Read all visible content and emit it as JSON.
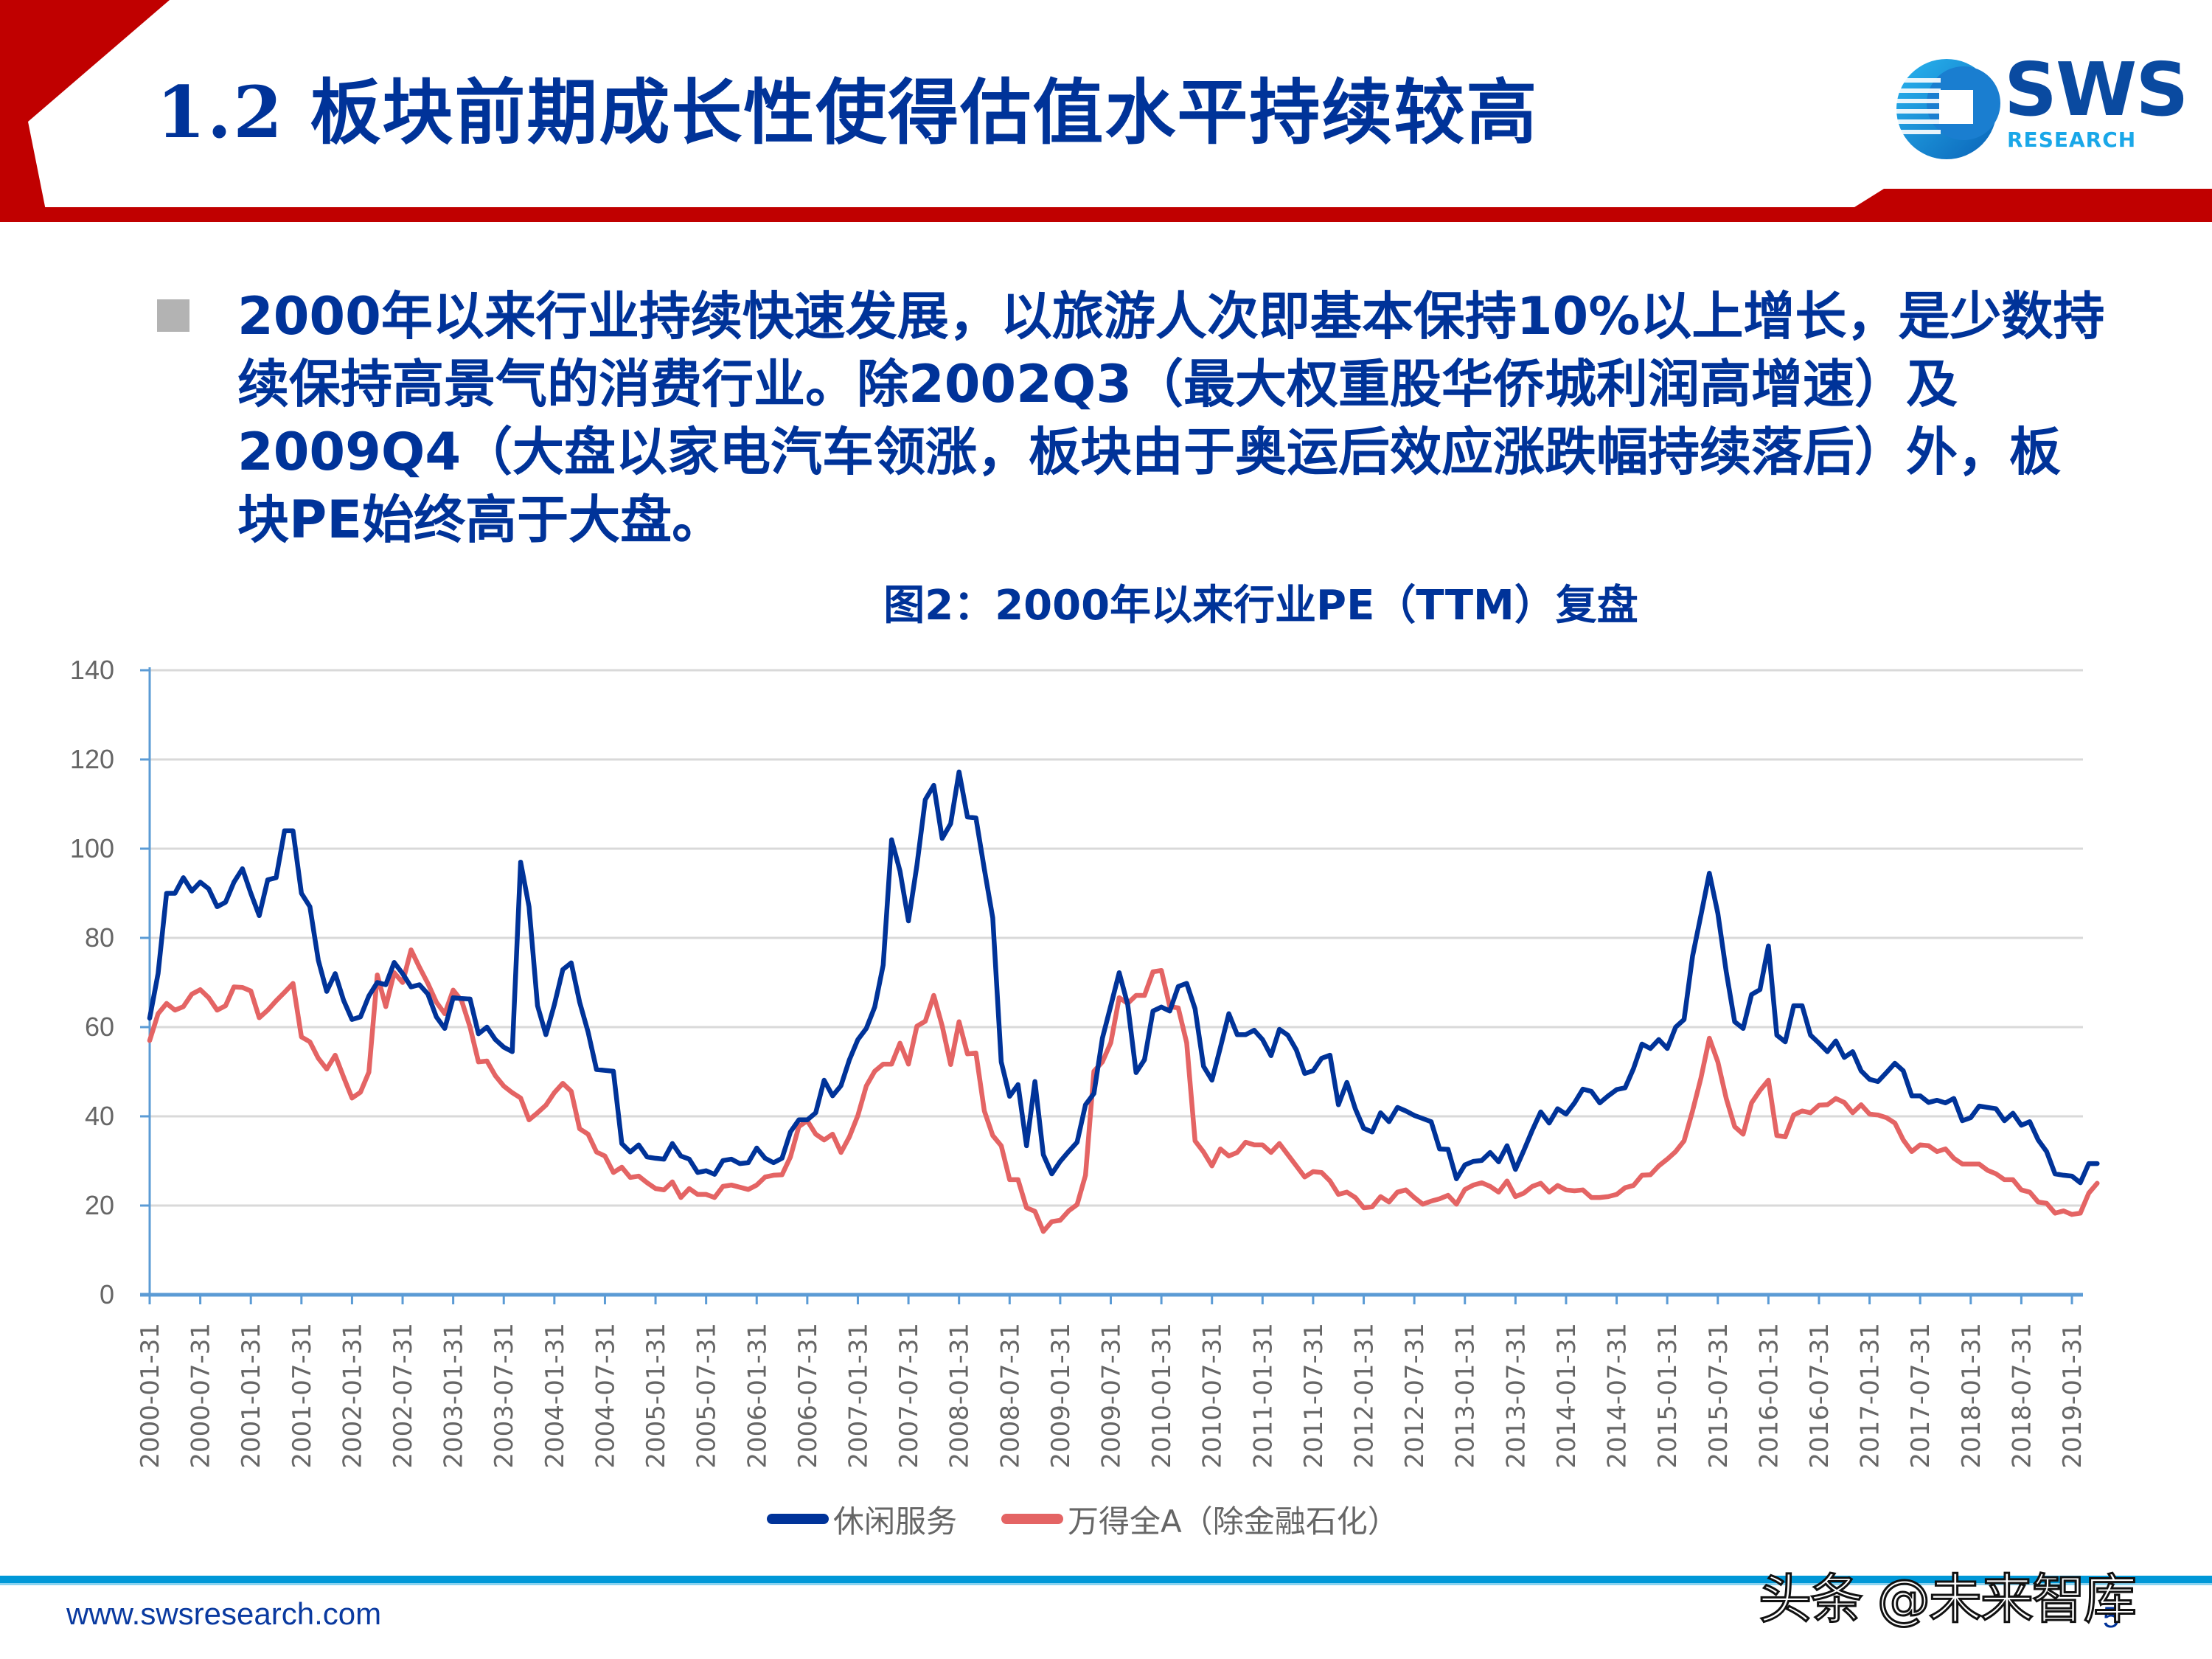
{
  "header": {
    "title": "1.2 板块前期成长性使得估值水平持续较高",
    "accent_color": "#c00000",
    "title_color": "#003399"
  },
  "logo": {
    "name": "SWS",
    "subtitle": "RESEARCH",
    "icon": "sws-globe-logo-icon"
  },
  "body": {
    "bullet_icon": "square-bullet-icon",
    "text": "2000年以来行业持续快速发展，以旅游人次即基本保持10%以上增长，是少数持续保持高景气的消费行业。除2002Q3（最大权重股华侨城利润高增速）及2009Q4（大盘以家电汽车领涨，板块由于奥运后效应涨跌幅持续落后）外，板块PE始终高于大盘。"
  },
  "chart": {
    "title": "图2：2000年以来行业PE（TTM）复盘"
  },
  "legend": {
    "items": [
      {
        "label": "休闲服务",
        "color": "#003399"
      },
      {
        "label": "万得全A（除金融石化）",
        "color": "#e46464"
      }
    ]
  },
  "footer": {
    "url": "www.swsresearch.com",
    "page_number": "5",
    "watermark": "头条 @未来智库",
    "line_color": "#0098d8"
  },
  "chart_data": {
    "type": "line",
    "title": "图2：2000年以来行业PE（TTM）复盘",
    "xlabel": "",
    "ylabel": "",
    "ylim": [
      0,
      140
    ],
    "yticks": [
      0,
      20,
      40,
      60,
      80,
      100,
      120,
      140
    ],
    "grid": true,
    "legend_position": "bottom",
    "x_start": "2000-01-31",
    "x_frequency": "monthly",
    "categories": [
      "2000-01-31",
      "2000-07-31",
      "2001-01-31",
      "2001-07-31",
      "2002-01-31",
      "2002-07-31",
      "2003-01-31",
      "2003-07-31",
      "2004-01-31",
      "2004-07-31",
      "2005-01-31",
      "2005-07-31",
      "2006-01-31",
      "2006-07-31",
      "2007-01-31",
      "2007-07-31",
      "2008-01-31",
      "2008-07-31",
      "2009-01-31",
      "2009-07-31",
      "2010-01-31",
      "2010-07-31",
      "2011-01-31",
      "2011-07-31",
      "2012-01-31",
      "2012-07-31",
      "2013-01-31",
      "2013-07-31",
      "2014-01-31",
      "2014-07-31",
      "2015-01-31",
      "2015-07-31",
      "2016-01-31",
      "2016-07-31",
      "2017-01-31",
      "2017-07-31",
      "2018-01-31",
      "2018-07-31",
      "2019-01-31"
    ],
    "series": [
      {
        "name": "休闲服务",
        "color": "#003399",
        "values": [
          62,
          72,
          90,
          90,
          93.5,
          90.5,
          92.5,
          91,
          87,
          88,
          92.5,
          95.5,
          90,
          85,
          93,
          93.5,
          104,
          104,
          90,
          87,
          75,
          68,
          72,
          66,
          61.7,
          62.3,
          67,
          70,
          69.5,
          74.5,
          72,
          69,
          69.5,
          67.4,
          62.3,
          59.7,
          66.6,
          66.4,
          66.3,
          58.5,
          60,
          57.2,
          55.5,
          54.5,
          97,
          87,
          64.8,
          58.3,
          65,
          72.9,
          74.4,
          65.6,
          58.9,
          50.5,
          50.3,
          50.1,
          33.9,
          32,
          33.6,
          30.9,
          30.6,
          30.4,
          33.9,
          31.1,
          30.4,
          27.4,
          27.8,
          27,
          30.1,
          30.4,
          29.4,
          29.6,
          32.9,
          30.6,
          29.6,
          30.6,
          36.5,
          39.2,
          39.2,
          40.8,
          48.1,
          44.6,
          46.9,
          52.7,
          57.2,
          59.7,
          64.5,
          73.9,
          102,
          95,
          83.8,
          96.2,
          111,
          114.2,
          102.3,
          105.6,
          117.2,
          107.1,
          106.9,
          95.4,
          84.5,
          52.2,
          44.5,
          47.1,
          33.4,
          47.8,
          31.4,
          27.1,
          29.9,
          32.1,
          34.2,
          42.6,
          45.1,
          57.5,
          64.8,
          72.2,
          65.1,
          49.8,
          52.7,
          63.6,
          64.5,
          63.6,
          69.1,
          69.8,
          64.1,
          51.2,
          48.1,
          55.4,
          63,
          58.3,
          58.3,
          59.3,
          57.2,
          53.6,
          59.5,
          58.2,
          54.9,
          49.6,
          50.2,
          53,
          53.7,
          42.6,
          47.6,
          41.7,
          37.3,
          36.5,
          40.8,
          38.8,
          42,
          41.2,
          40.2,
          39.5,
          38.8,
          32.7,
          32.6,
          26,
          29.1,
          29.9,
          30.1,
          31.9,
          29.8,
          33.4,
          28.1,
          32.4,
          36.9,
          41,
          38.5,
          41.7,
          40.5,
          43,
          46.1,
          45.6,
          43,
          44.6,
          46,
          46.4,
          50.7,
          56.2,
          55.2,
          57.2,
          55.2,
          60,
          61.7,
          75.9,
          85.1,
          94.5,
          85.5,
          72.4,
          61.2,
          59.7,
          67.3,
          68.4,
          78.2,
          58.2,
          56.7,
          64.8,
          64.8,
          58.2,
          56.4,
          54.5,
          56.9,
          53.2,
          54.5,
          50.2,
          48.3,
          47.8,
          49.8,
          51.9,
          50.2,
          44.6,
          44.6,
          43.1,
          43.6,
          43,
          44,
          39,
          39.7,
          42.3,
          42,
          41.7,
          39,
          40.7,
          38,
          38.8,
          34.7,
          32.1,
          27.1,
          26.8,
          26.6,
          25.1,
          29.4,
          29.4
        ]
      },
      {
        "name": "万得全A（除金融石化）",
        "color": "#e46464",
        "values": [
          57,
          63,
          65.3,
          63.8,
          64.6,
          67.4,
          68.4,
          66.6,
          63.8,
          64.8,
          69,
          68.9,
          68.1,
          62.1,
          63.8,
          65.9,
          67.8,
          69.8,
          57.8,
          56.7,
          53,
          50.6,
          53.7,
          48.8,
          44.1,
          45.4,
          49.9,
          71.7,
          64.6,
          72.2,
          70,
          77.3,
          73.4,
          69.8,
          65.6,
          63,
          68.3,
          65.9,
          60,
          52.2,
          52.4,
          49.1,
          46.8,
          45.3,
          44.1,
          39.2,
          40.8,
          42.5,
          45.3,
          47.4,
          45.6,
          37.2,
          36,
          32,
          31.1,
          27.4,
          28.6,
          26.3,
          26.6,
          25.1,
          23.8,
          23.5,
          25.3,
          21.8,
          23.8,
          22.5,
          22.5,
          21.8,
          24.3,
          24.6,
          24.1,
          23.6,
          24.6,
          26.4,
          26.8,
          26.9,
          30.9,
          37.7,
          39,
          36,
          34.7,
          36,
          31.9,
          35.4,
          40.2,
          46.8,
          50.1,
          51.7,
          51.7,
          56.4,
          51.7,
          60.2,
          61.3,
          67.1,
          60.3,
          51.6,
          61.2,
          54,
          54.2,
          41.2,
          35.7,
          33.4,
          25.8,
          25.8,
          19.5,
          18.7,
          14.2,
          16.4,
          16.7,
          18.8,
          20.2,
          26.8,
          50.1,
          52.2,
          56.5,
          66.6,
          65.3,
          67.1,
          67.1,
          72.4,
          72.7,
          64.6,
          64.3,
          56.5,
          34.5,
          32,
          28.9,
          32.7,
          31.1,
          31.9,
          34.2,
          33.6,
          33.6,
          31.9,
          33.9,
          31.4,
          28.9,
          26.4,
          27.6,
          27.4,
          25.5,
          22.5,
          23,
          21.8,
          19.5,
          19.7,
          22,
          20.8,
          23,
          23.5,
          21.8,
          20.3,
          21,
          21.5,
          22.3,
          20.3,
          23.6,
          24.6,
          25.1,
          24.3,
          23,
          25.5,
          22,
          22.8,
          24.3,
          25,
          23,
          24.5,
          23.5,
          23.3,
          23.5,
          21.8,
          21.8,
          22,
          22.5,
          24,
          24.5,
          26.8,
          26.9,
          28.9,
          30.4,
          32.1,
          34.5,
          41.2,
          48.6,
          57.5,
          52.2,
          44,
          37.7,
          36,
          43,
          45.8,
          48.1,
          35.7,
          35.4,
          40.3,
          41.2,
          40.8,
          42.5,
          42.6,
          44,
          43.1,
          40.8,
          42.6,
          40.5,
          40.3,
          39.7,
          38.5,
          34.7,
          32.1,
          33.6,
          33.4,
          32.1,
          32.7,
          30.6,
          29.3,
          29.3,
          29.3,
          27.9,
          27.1,
          25.8,
          25.8,
          23.5,
          23,
          20.8,
          20.5,
          18.3,
          18.8,
          18,
          18.3,
          22.8,
          25
        ]
      }
    ]
  }
}
